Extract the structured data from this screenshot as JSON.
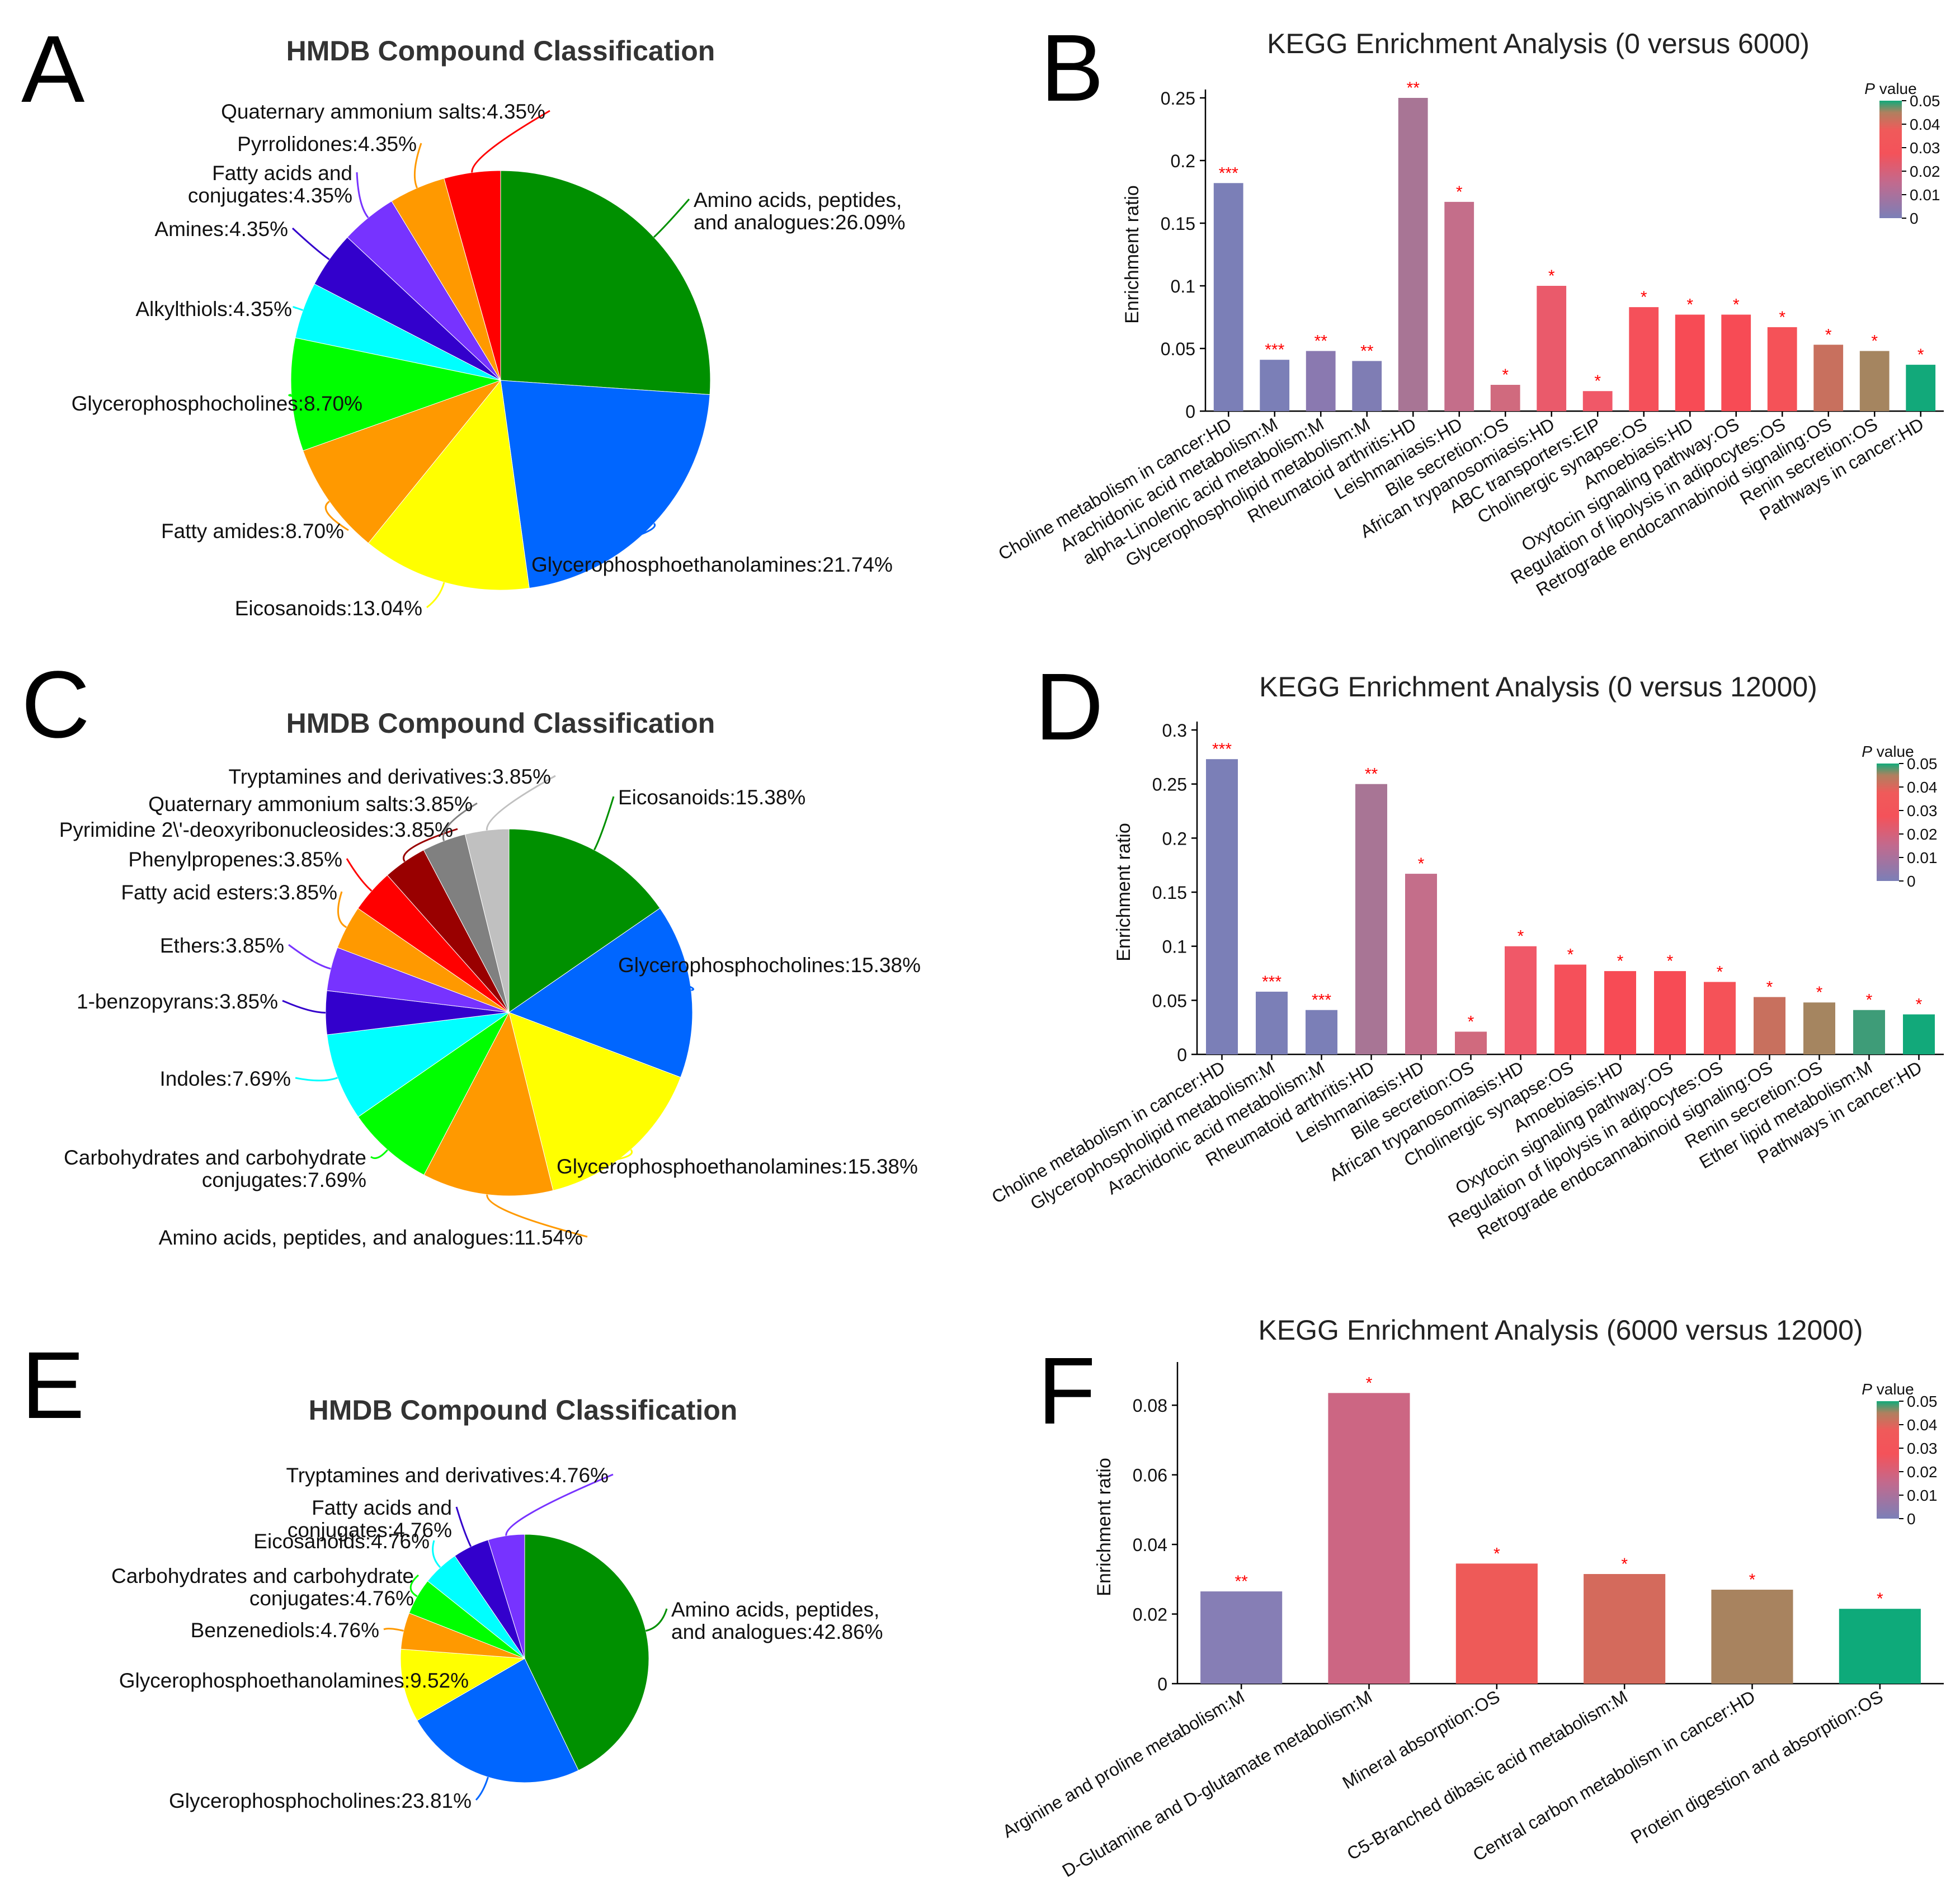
{
  "colors": {
    "pie": {
      "green": "#009000",
      "blue": "#0066ff",
      "yellow": "#ffff00",
      "orange": "#ff9900",
      "lime": "#00ff00",
      "cyan": "#00ffff",
      "indigo": "#3300cc",
      "violet": "#7733ff",
      "amber": "#ff9900",
      "red": "#ff0000",
      "darkred": "#990000",
      "grey": "#808080",
      "lightgrey": "#c0c0c0"
    },
    "gradient_pvalue": [
      "#7b7fb7",
      "#c16a8e",
      "#f4525a",
      "#c2705e",
      "#2fa87e",
      "#12aa7a"
    ],
    "star_color": "#ff0000"
  },
  "panels": [
    "A",
    "B",
    "C",
    "D",
    "E",
    "F"
  ],
  "chart_data": [
    {
      "panel": "A",
      "type": "pie",
      "title": "HMDB Compound Classification",
      "slices": [
        {
          "label": "Amino acids, peptides, and analogues",
          "pct": "26.09%",
          "value": 26.09,
          "color": "#009000"
        },
        {
          "label": "Glycerophosphoethanolamines",
          "pct": "21.74%",
          "value": 21.74,
          "color": "#0066ff"
        },
        {
          "label": "Eicosanoids",
          "pct": "13.04%",
          "value": 13.04,
          "color": "#ffff00"
        },
        {
          "label": "Fatty amides",
          "pct": "8.70%",
          "value": 8.7,
          "color": "#ff9900"
        },
        {
          "label": "Glycerophosphocholines",
          "pct": "8.70%",
          "value": 8.7,
          "color": "#00ff00"
        },
        {
          "label": "Alkylthiols",
          "pct": "4.35%",
          "value": 4.35,
          "color": "#00ffff"
        },
        {
          "label": "Amines",
          "pct": "4.35%",
          "value": 4.35,
          "color": "#3300cc"
        },
        {
          "label": "Fatty acids and conjugates",
          "pct": "4.35%",
          "value": 4.35,
          "color": "#7733ff"
        },
        {
          "label": "Pyrrolidones",
          "pct": "4.35%",
          "value": 4.35,
          "color": "#ff9900"
        },
        {
          "label": "Quaternary ammonium salts",
          "pct": "4.35%",
          "value": 4.35,
          "color": "#ff0000"
        }
      ]
    },
    {
      "panel": "B",
      "type": "bar",
      "title": "KEGG Enrichment Analysis (0 versus 6000)",
      "ylabel": "Enrichment ratio",
      "ylim": [
        0,
        0.25
      ],
      "yticks": [
        "0",
        "0.05",
        "0.1",
        "0.15",
        "0.2",
        "0.25"
      ],
      "legend": {
        "title": "P value",
        "ticks": [
          "0.05",
          "0.04",
          "0.03",
          "0.02",
          "0.01",
          "0"
        ]
      },
      "categories": [
        "Choline metabolism in cancer:HD",
        "Arachidonic acid metabolism:M",
        "alpha-Linolenic acid metabolism:M",
        "Glycerophospholipid metabolism:M",
        "Rheumatoid arthritis:HD",
        "Leishmaniasis:HD",
        "Bile secretion:OS",
        "African trypanosomiasis:HD",
        "ABC transporters:EIP",
        "Cholinergic synapse:OS",
        "Amoebiasis:HD",
        "Oxytocin signaling pathway:OS",
        "Regulation of lipolysis in adipocytes:OS",
        "Retrograde endocannabinoid signaling:OS",
        "Renin secretion:OS",
        "Pathways in cancer:HD"
      ],
      "values": [
        0.182,
        0.041,
        0.048,
        0.04,
        0.25,
        0.167,
        0.021,
        0.1,
        0.016,
        0.083,
        0.077,
        0.077,
        0.067,
        0.053,
        0.048,
        0.037
      ],
      "stars": [
        "***",
        "***",
        "**",
        "**",
        "**",
        "*",
        "*",
        "*",
        "*",
        "*",
        "*",
        "*",
        "*",
        "*",
        "*",
        "*"
      ],
      "colors": [
        "#7b7fb7",
        "#7b7fb7",
        "#8a79b0",
        "#7f7db4",
        "#a87595",
        "#c46e8a",
        "#d06a7e",
        "#ea5a6b",
        "#f05868",
        "#f5505a",
        "#f74b55",
        "#f74b55",
        "#f55258",
        "#c8705e",
        "#a58560",
        "#12a97a"
      ]
    },
    {
      "panel": "C",
      "type": "pie",
      "title": "HMDB Compound Classification",
      "slices": [
        {
          "label": "Eicosanoids",
          "pct": "15.38%",
          "value": 15.38,
          "color": "#009000"
        },
        {
          "label": "Glycerophosphocholines",
          "pct": "15.38%",
          "value": 15.38,
          "color": "#0066ff"
        },
        {
          "label": "Glycerophosphoethanolamines",
          "pct": "15.38%",
          "value": 15.38,
          "color": "#ffff00"
        },
        {
          "label": "Amino acids, peptides, and analogues",
          "pct": "11.54%",
          "value": 11.54,
          "color": "#ff9900"
        },
        {
          "label": "Carbohydrates and carbohydrate conjugates",
          "pct": "7.69%",
          "value": 7.69,
          "color": "#00ff00"
        },
        {
          "label": "Indoles",
          "pct": "7.69%",
          "value": 7.69,
          "color": "#00ffff"
        },
        {
          "label": "1-benzopyrans",
          "pct": "3.85%",
          "value": 3.85,
          "color": "#3300cc"
        },
        {
          "label": "Ethers",
          "pct": "3.85%",
          "value": 3.85,
          "color": "#7733ff"
        },
        {
          "label": "Fatty acid esters",
          "pct": "3.85%",
          "value": 3.85,
          "color": "#ff9900"
        },
        {
          "label": "Phenylpropenes",
          "pct": "3.85%",
          "value": 3.85,
          "color": "#ff0000"
        },
        {
          "label": "Pyrimidine 2\\'-deoxyribonucleosides",
          "pct": "3.85%",
          "value": 3.85,
          "color": "#990000"
        },
        {
          "label": "Quaternary ammonium salts",
          "pct": "3.85%",
          "value": 3.85,
          "color": "#808080"
        },
        {
          "label": "Tryptamines and derivatives",
          "pct": "3.85%",
          "value": 3.85,
          "color": "#c0c0c0"
        }
      ]
    },
    {
      "panel": "D",
      "type": "bar",
      "title": "KEGG Enrichment Analysis (0 versus 12000)",
      "ylabel": "Enrichment ratio",
      "ylim": [
        0,
        0.3
      ],
      "yticks": [
        "0",
        "0.05",
        "0.1",
        "0.15",
        "0.2",
        "0.25",
        "0.3"
      ],
      "legend": {
        "title": "P value",
        "ticks": [
          "0.05",
          "0.04",
          "0.03",
          "0.02",
          "0.01",
          "0"
        ]
      },
      "categories": [
        "Choline metabolism in cancer:HD",
        "Glycerophospholipid metabolism:M",
        "Arachidonic acid metabolism:M",
        "Rheumatoid arthritis:HD",
        "Leishmaniasis:HD",
        "Bile secretion:OS",
        "African trypanosomiasis:HD",
        "Cholinergic synapse:OS",
        "Amoebiasis:HD",
        "Oxytocin signaling pathway:OS",
        "Regulation of lipolysis in adipocytes:OS",
        "Retrograde endocannabinoid signaling:OS",
        "Renin secretion:OS",
        "Ether lipid metabolism:M",
        "Pathways in cancer:HD"
      ],
      "values": [
        0.273,
        0.058,
        0.041,
        0.25,
        0.167,
        0.021,
        0.1,
        0.083,
        0.077,
        0.077,
        0.067,
        0.053,
        0.048,
        0.041,
        0.037
      ],
      "stars": [
        "***",
        "***",
        "***",
        "**",
        "*",
        "*",
        "*",
        "*",
        "*",
        "*",
        "*",
        "*",
        "*",
        "*",
        "*"
      ],
      "colors": [
        "#7b7fb7",
        "#7b7fb7",
        "#7b7fb7",
        "#a87595",
        "#c46e8a",
        "#d06a7e",
        "#f05868",
        "#f5505a",
        "#f74b55",
        "#f74b55",
        "#f55258",
        "#c8705e",
        "#a58560",
        "#3e9c78",
        "#12a97a"
      ]
    },
    {
      "panel": "E",
      "type": "pie",
      "title": "HMDB Compound Classification",
      "slices": [
        {
          "label": "Amino acids, peptides, and analogues",
          "pct": "42.86%",
          "value": 42.86,
          "color": "#009000"
        },
        {
          "label": "Glycerophosphocholines",
          "pct": "23.81%",
          "value": 23.81,
          "color": "#0066ff"
        },
        {
          "label": "Glycerophosphoethanolamines",
          "pct": "9.52%",
          "value": 9.52,
          "color": "#ffff00"
        },
        {
          "label": "Benzenediols",
          "pct": "4.76%",
          "value": 4.76,
          "color": "#ff9900"
        },
        {
          "label": "Carbohydrates and carbohydrate conjugates",
          "pct": "4.76%",
          "value": 4.76,
          "color": "#00ff00"
        },
        {
          "label": "Eicosanoids",
          "pct": "4.76%",
          "value": 4.76,
          "color": "#00ffff"
        },
        {
          "label": "Fatty acids and conjugates",
          "pct": "4.76%",
          "value": 4.76,
          "color": "#3300cc"
        },
        {
          "label": "Tryptamines and derivatives",
          "pct": "4.76%",
          "value": 4.76,
          "color": "#7733ff"
        }
      ]
    },
    {
      "panel": "F",
      "type": "bar",
      "title": "KEGG Enrichment Analysis (6000 versus 12000)",
      "ylabel": "Enrichment ratio",
      "ylim": [
        0,
        0.09
      ],
      "yticks": [
        "0",
        "0.02",
        "0.04",
        "0.06",
        "0.08"
      ],
      "legend": {
        "title": "P value",
        "ticks": [
          "0.05",
          "0.04",
          "0.03",
          "0.02",
          "0.01",
          "0"
        ]
      },
      "categories": [
        "Arginine and proline metabolism:M",
        "D-Glutamine and D-glutamate metabolism:M",
        "Mineral absorption:OS",
        "C5-Branched dibasic acid metabolism:M",
        "Central carbon metabolism in cancer:HD",
        "Protein digestion and absorption:OS"
      ],
      "values": [
        0.0265,
        0.0835,
        0.0345,
        0.0315,
        0.027,
        0.0215
      ],
      "stars": [
        "**",
        "*",
        "*",
        "*",
        "*",
        "*"
      ],
      "colors": [
        "#867eb5",
        "#cc6683",
        "#ee5a58",
        "#d46a5c",
        "#a8835f",
        "#0eaa7a"
      ]
    }
  ]
}
